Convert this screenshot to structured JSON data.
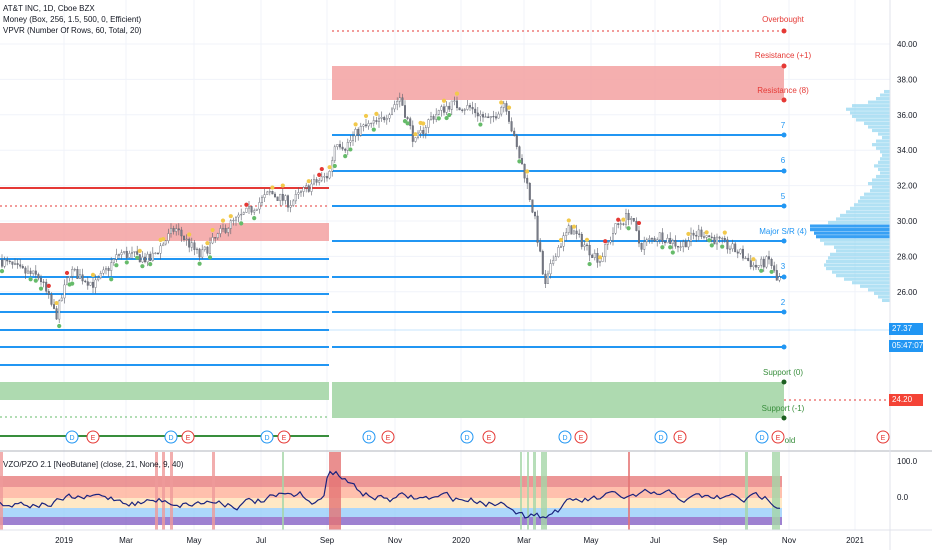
{
  "legend": {
    "title": "AT&T INC, 1D, Cboe BZX",
    "line2": "Money (Box, 256, 1.5, 500, 0, Efficient)",
    "line3": "VPVR (Number Of Rows, 60, Total, 20)",
    "osc": "VZO/PZO 2.1 [NeoButane] (close, 21, None, 9, 40)"
  },
  "price_axis": {
    "labels": [
      "40.00",
      "38.00",
      "36.00",
      "34.00",
      "32.00",
      "30.00",
      "28.00",
      "26.00"
    ],
    "values": [
      40,
      38,
      36,
      34,
      32,
      30,
      28,
      26
    ],
    "current_price": "27.37",
    "countdown": "05:47:07",
    "support_price": "24.20"
  },
  "osc_axis": {
    "labels": [
      "100.0",
      "0.0"
    ],
    "values": [
      100,
      0
    ]
  },
  "time_axis": {
    "labels": [
      "2019",
      "Mar",
      "May",
      "Jul",
      "Sep",
      "Nov",
      "2020",
      "Mar",
      "May",
      "Jul",
      "Sep",
      "Nov",
      "2021"
    ]
  },
  "levels": {
    "overbought": "Overbought",
    "resistance_plus1": "Resistance (+1)",
    "resistance_8": "Resistance (8)",
    "l7": "7",
    "l6": "6",
    "l5": "5",
    "major": "Major S/R (4)",
    "l3": "3",
    "l2": "2",
    "support_0": "Support (0)",
    "support_minus1": "Support (-1)",
    "hold": "old"
  },
  "events": [
    "D",
    "E",
    "D",
    "E",
    "D",
    "E",
    "D",
    "E",
    "D",
    "E",
    "D",
    "E",
    "D",
    "E",
    "D",
    "E",
    "E"
  ],
  "colors": {
    "blue_level": "#2196f3",
    "red_zone": "#f4a6a6",
    "green_zone": "#a5d6a7",
    "price_tag": "#2196f3",
    "support_tag": "#f44336",
    "up_dot": "#f2c94c",
    "down_dot": "#66bb6a",
    "red_dot": "#e53935"
  }
}
